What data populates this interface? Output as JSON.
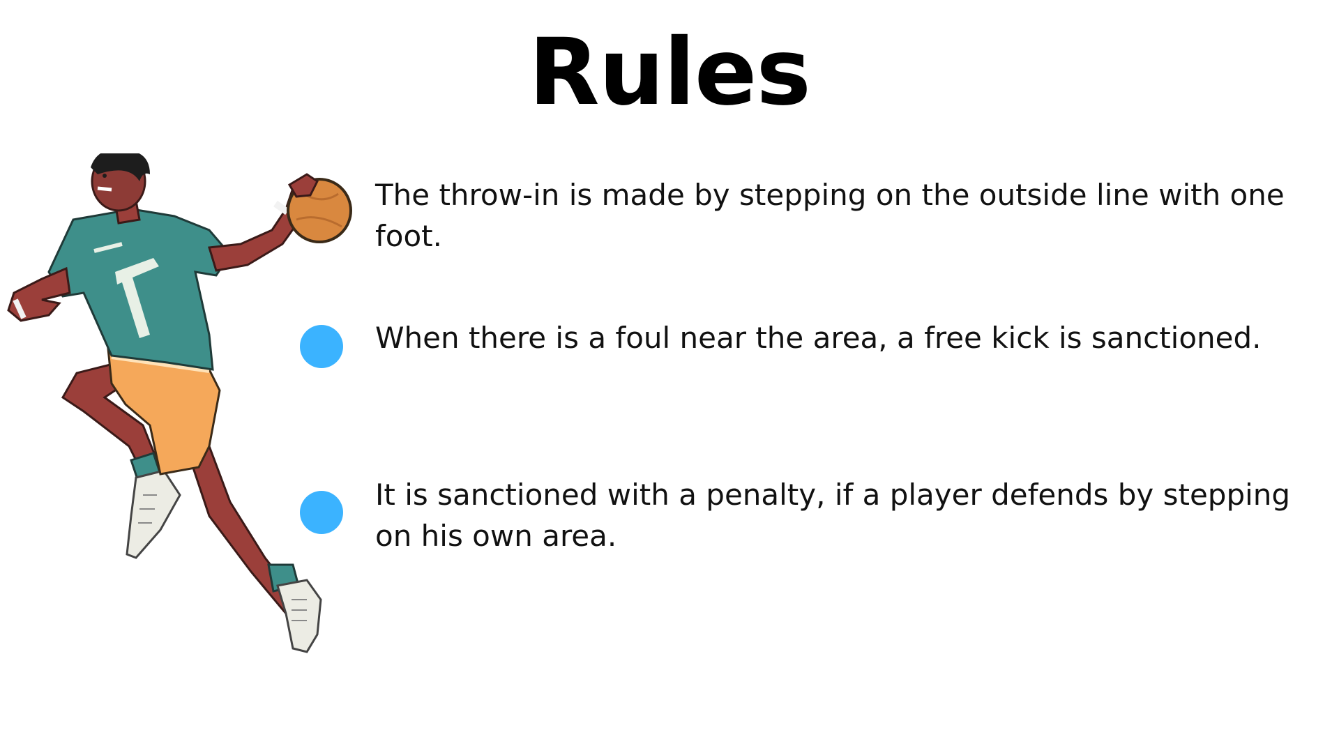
{
  "slide": {
    "title": "Rules",
    "accent_color": "#3bb3ff",
    "illustration": "handball-player-jumping-with-ball",
    "rules": [
      {
        "text": "The throw-in is made by stepping on the outside line with one foot.",
        "bullet": false
      },
      {
        "text": "When there is a foul near the area, a free kick is sanctioned.",
        "bullet": true
      },
      {
        "text": "It is sanctioned with a penalty, if a player defends by stepping on his own area.",
        "bullet": true
      }
    ]
  }
}
